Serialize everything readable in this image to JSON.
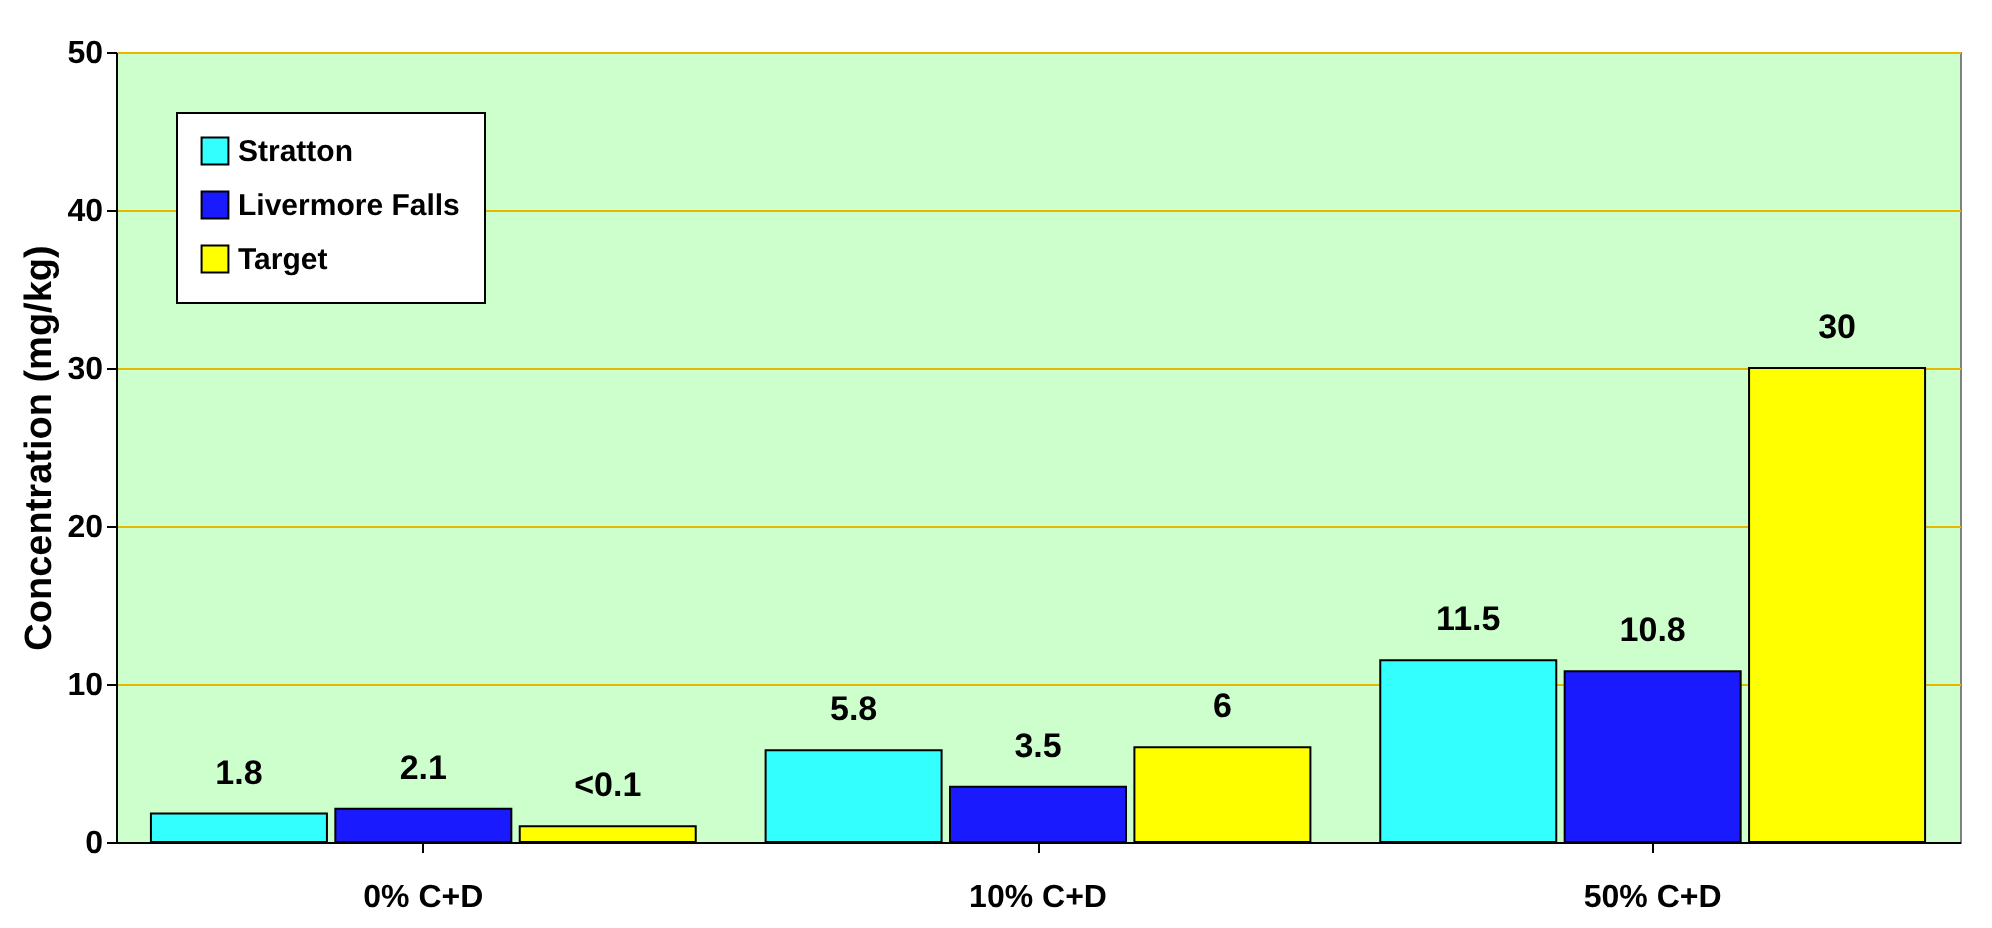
{
  "chart_data": {
    "type": "bar",
    "ylabel": "Concentration (mg/kg)",
    "categories": [
      "0% C+D",
      "10% C+D",
      "50% C+D"
    ],
    "series": [
      {
        "name": "Stratton",
        "color": "#33ffff",
        "values": [
          1.8,
          5.8,
          11.5
        ],
        "value_labels": [
          "1.8",
          "5.8",
          "11.5"
        ]
      },
      {
        "name": "Livermore Falls",
        "color": "#1a1aff",
        "values": [
          2.1,
          3.5,
          10.8
        ],
        "value_labels": [
          "2.1",
          "3.5",
          "10.8"
        ]
      },
      {
        "name": "Target",
        "color": "#ffff00",
        "values": [
          1,
          6,
          30
        ],
        "value_labels": [
          "<0.1",
          "6",
          "30"
        ]
      }
    ],
    "ylim": [
      0,
      50
    ],
    "yticks": [
      0,
      10,
      20,
      30,
      40,
      50
    ],
    "grid": "y",
    "legend": "top left"
  }
}
